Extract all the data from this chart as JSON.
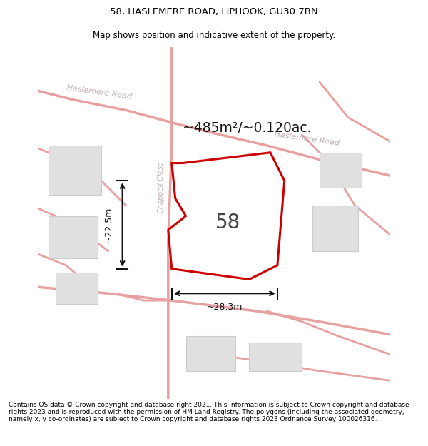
{
  "title": "58, HASLEMERE ROAD, LIPHOOK, GU30 7BN",
  "subtitle": "Map shows position and indicative extent of the property.",
  "footer": "Contains OS data © Crown copyright and database right 2021. This information is subject to Crown copyright and database rights 2023 and is reproduced with the permission of HM Land Registry. The polygons (including the associated geometry, namely x, y co-ordinates) are subject to Crown copyright and database rights 2023 Ordnance Survey 100026316.",
  "title_fontsize": 9.5,
  "subtitle_fontsize": 8.5,
  "footer_fontsize": 6.5,
  "area_label": "~485m²/~0.120ac.",
  "number_label": "58",
  "width_label": "~28.3m",
  "height_label": "~22.5m",
  "road_color": "#e8a0a0",
  "road_label_color": "#c0b0b0",
  "property_outline_color": "#cc0000",
  "building_fill": "#e0e0e0",
  "building_edge": "#cccccc",
  "arrow_color": "#111111"
}
